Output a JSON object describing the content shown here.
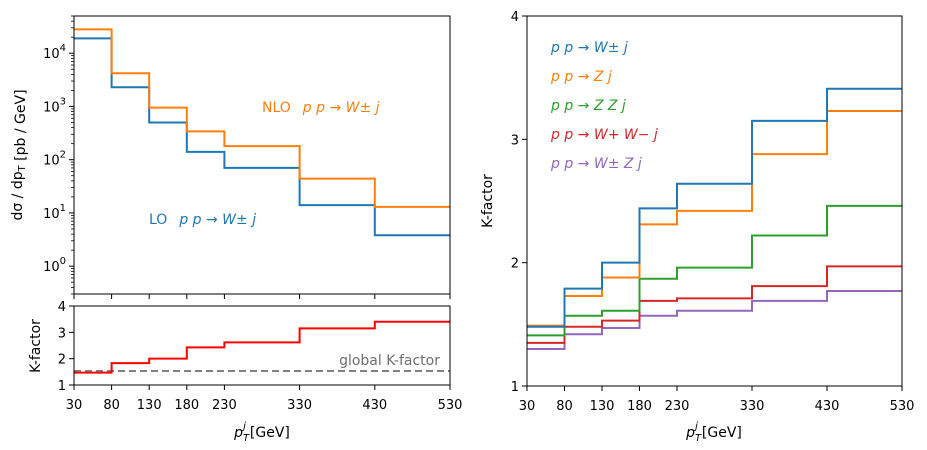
{
  "chart_data": [
    {
      "type": "line",
      "title": "",
      "xlabel": "p_T^j [GeV]",
      "ylabel": "dσ / dp_T  [pb / GeV]",
      "yscale": "log",
      "ylim": [
        0.3,
        50000
      ],
      "xlim": [
        30,
        530
      ],
      "x_ticks": [
        "30",
        "80",
        "130",
        "180",
        "230",
        "330",
        "430",
        "530"
      ],
      "y_ticks": [
        "10^0",
        "10^1",
        "10^2",
        "10^3",
        "10^4"
      ],
      "bin_edges": [
        30,
        80,
        130,
        180,
        230,
        330,
        430,
        530
      ],
      "series": [
        {
          "name": "LO",
          "process": "p p → W± j",
          "color": "#1f77b4",
          "values": [
            19000,
            2300,
            500,
            140,
            70,
            14,
            3.8
          ]
        },
        {
          "name": "NLO",
          "process": "p p → W± j",
          "color": "#ff7f0e",
          "values": [
            28000,
            4200,
            950,
            340,
            180,
            44,
            13
          ]
        }
      ],
      "annotations": [
        {
          "text": "NLO",
          "process": "p p → W± j",
          "color": "#ff7f0e"
        },
        {
          "text": "LO",
          "process": "p p → W± j",
          "color": "#1f77b4"
        }
      ]
    },
    {
      "type": "line",
      "xlabel": "p_T^j [GeV]",
      "ylabel": "K-factor",
      "ylim": [
        1,
        4
      ],
      "y_ticks": [
        "1",
        "2",
        "3",
        "4"
      ],
      "x_ticks": [
        "30",
        "80",
        "130",
        "180",
        "230",
        "330",
        "430",
        "530"
      ],
      "bin_edges": [
        30,
        80,
        130,
        180,
        230,
        330,
        430,
        530
      ],
      "series": [
        {
          "name": "K-factor",
          "color": "#ff0000",
          "values": [
            1.47,
            1.83,
            2.0,
            2.43,
            2.62,
            3.15,
            3.4
          ]
        }
      ],
      "hline": {
        "label": "global K-factor",
        "value": 1.53,
        "color": "#808080"
      }
    },
    {
      "type": "line",
      "xlabel": "p_T^j [GeV]",
      "ylabel": "K-factor",
      "ylim": [
        1,
        4
      ],
      "xlim": [
        30,
        530
      ],
      "x_ticks": [
        "30",
        "80",
        "130",
        "180",
        "230",
        "330",
        "430",
        "530"
      ],
      "y_ticks": [
        "1",
        "2",
        "3",
        "4"
      ],
      "bin_edges": [
        30,
        80,
        130,
        180,
        230,
        330,
        430,
        530
      ],
      "series": [
        {
          "name": "p p → W± j",
          "color": "#1f77b4",
          "values": [
            1.48,
            1.79,
            2.0,
            2.44,
            2.64,
            3.15,
            3.41
          ]
        },
        {
          "name": "p p → Z j",
          "color": "#ff7f0e",
          "values": [
            1.49,
            1.73,
            1.88,
            2.31,
            2.42,
            2.88,
            3.23
          ]
        },
        {
          "name": "p p → Z Z j",
          "color": "#2ca02c",
          "values": [
            1.41,
            1.57,
            1.61,
            1.87,
            1.96,
            2.22,
            2.46
          ]
        },
        {
          "name": "p p → W+ W− j",
          "color": "#d62728",
          "values": [
            1.35,
            1.48,
            1.53,
            1.69,
            1.71,
            1.81,
            1.97
          ]
        },
        {
          "name": "p p → W± Z j",
          "color": "#9467bd",
          "values": [
            1.3,
            1.42,
            1.47,
            1.57,
            1.61,
            1.69,
            1.77
          ]
        }
      ]
    }
  ]
}
